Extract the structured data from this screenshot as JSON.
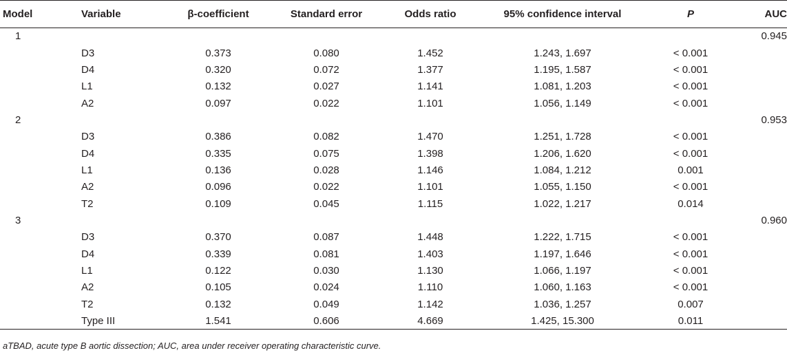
{
  "table": {
    "headers": {
      "model": "Model",
      "variable": "Variable",
      "beta": "β-coefficient",
      "se": "Standard error",
      "or": "Odds ratio",
      "ci": "95% confidence interval",
      "p": "P",
      "auc": "AUC"
    },
    "rows": [
      {
        "model": "1",
        "variable": "",
        "beta": "",
        "se": "",
        "or": "",
        "ci": "",
        "p": "",
        "auc": "0.945"
      },
      {
        "model": "",
        "variable": "D3",
        "beta": "0.373",
        "se": "0.080",
        "or": "1.452",
        "ci": "1.243, 1.697",
        "p": "< 0.001",
        "auc": ""
      },
      {
        "model": "",
        "variable": "D4",
        "beta": "0.320",
        "se": "0.072",
        "or": "1.377",
        "ci": "1.195, 1.587",
        "p": "< 0.001",
        "auc": ""
      },
      {
        "model": "",
        "variable": "L1",
        "beta": "0.132",
        "se": "0.027",
        "or": "1.141",
        "ci": "1.081, 1.203",
        "p": "< 0.001",
        "auc": ""
      },
      {
        "model": "",
        "variable": "A2",
        "beta": "0.097",
        "se": "0.022",
        "or": "1.101",
        "ci": "1.056, 1.149",
        "p": "< 0.001",
        "auc": ""
      },
      {
        "model": "2",
        "variable": "",
        "beta": "",
        "se": "",
        "or": "",
        "ci": "",
        "p": "",
        "auc": "0.953"
      },
      {
        "model": "",
        "variable": "D3",
        "beta": "0.386",
        "se": "0.082",
        "or": "1.470",
        "ci": "1.251, 1.728",
        "p": "< 0.001",
        "auc": ""
      },
      {
        "model": "",
        "variable": "D4",
        "beta": "0.335",
        "se": "0.075",
        "or": "1.398",
        "ci": "1.206, 1.620",
        "p": "< 0.001",
        "auc": ""
      },
      {
        "model": "",
        "variable": "L1",
        "beta": "0.136",
        "se": "0.028",
        "or": "1.146",
        "ci": "1.084, 1.212",
        "p": "0.001",
        "auc": ""
      },
      {
        "model": "",
        "variable": "A2",
        "beta": "0.096",
        "se": "0.022",
        "or": "1.101",
        "ci": "1.055, 1.150",
        "p": "< 0.001",
        "auc": ""
      },
      {
        "model": "",
        "variable": "T2",
        "beta": "0.109",
        "se": "0.045",
        "or": "1.115",
        "ci": "1.022, 1.217",
        "p": "0.014",
        "auc": ""
      },
      {
        "model": "3",
        "variable": "",
        "beta": "",
        "se": "",
        "or": "",
        "ci": "",
        "p": "",
        "auc": "0.960"
      },
      {
        "model": "",
        "variable": "D3",
        "beta": "0.370",
        "se": "0.087",
        "or": "1.448",
        "ci": "1.222, 1.715",
        "p": "< 0.001",
        "auc": ""
      },
      {
        "model": "",
        "variable": "D4",
        "beta": "0.339",
        "se": "0.081",
        "or": "1.403",
        "ci": "1.197, 1.646",
        "p": "< 0.001",
        "auc": ""
      },
      {
        "model": "",
        "variable": "L1",
        "beta": "0.122",
        "se": "0.030",
        "or": "1.130",
        "ci": "1.066, 1.197",
        "p": "< 0.001",
        "auc": ""
      },
      {
        "model": "",
        "variable": "A2",
        "beta": "0.105",
        "se": "0.024",
        "or": "1.110",
        "ci": "1.060, 1.163",
        "p": "< 0.001",
        "auc": ""
      },
      {
        "model": "",
        "variable": "T2",
        "beta": "0.132",
        "se": "0.049",
        "or": "1.142",
        "ci": "1.036, 1.257",
        "p": "0.007",
        "auc": ""
      },
      {
        "model": "",
        "variable": "Type III",
        "beta": "1.541",
        "se": "0.606",
        "or": "4.669",
        "ci": "1.425, 15.300",
        "p": "0.011",
        "auc": ""
      }
    ]
  },
  "footnote": "aTBAD, acute type B aortic dissection; AUC, area under receiver operating characteristic curve."
}
